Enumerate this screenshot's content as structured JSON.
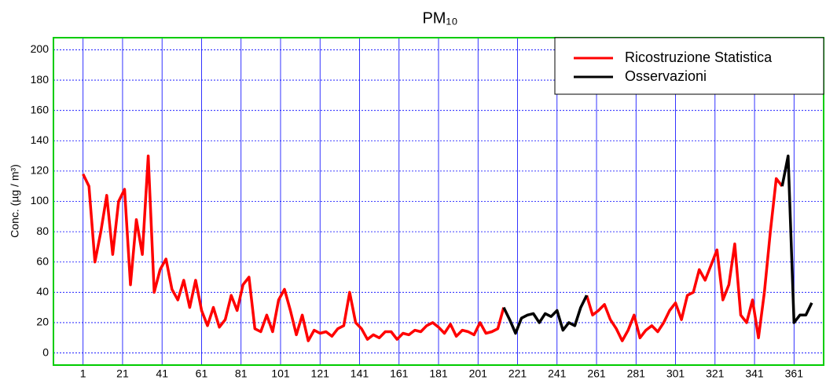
{
  "chart_data": {
    "type": "line",
    "title": "PM₁₀",
    "ylabel": "Conc. (µg / m³)",
    "x": [
      1,
      4,
      7,
      10,
      13,
      16,
      19,
      22,
      25,
      28,
      31,
      34,
      37,
      40,
      43,
      46,
      49,
      52,
      55,
      58,
      61,
      64,
      67,
      70,
      73,
      76,
      79,
      82,
      85,
      88,
      91,
      94,
      97,
      100,
      103,
      106,
      109,
      112,
      115,
      118,
      121,
      124,
      127,
      130,
      133,
      136,
      139,
      142,
      145,
      148,
      151,
      154,
      157,
      160,
      163,
      166,
      169,
      172,
      175,
      178,
      181,
      184,
      187,
      190,
      193,
      196,
      199,
      202,
      205,
      208,
      211,
      214,
      217,
      220,
      223,
      226,
      229,
      232,
      235,
      238,
      241,
      244,
      247,
      250,
      253,
      256,
      259,
      262,
      265,
      268,
      271,
      274,
      277,
      280,
      283,
      286,
      289,
      292,
      295,
      298,
      301,
      304,
      307,
      310,
      313,
      316,
      319,
      322,
      325,
      328,
      331,
      334,
      337,
      340,
      343,
      346,
      349,
      352,
      355,
      358,
      361,
      364,
      367,
      370
    ],
    "series": [
      {
        "name": "Ricostruzione Statistica",
        "color": "#ff0000",
        "values": [
          118,
          110,
          60,
          80,
          104,
          65,
          100,
          108,
          45,
          88,
          65,
          130,
          40,
          55,
          62,
          42,
          35,
          48,
          30,
          48,
          28,
          18,
          30,
          17,
          22,
          38,
          28,
          45,
          50,
          16,
          14,
          25,
          14,
          35,
          42,
          28,
          12,
          25,
          8,
          15,
          13,
          14,
          11,
          16,
          18,
          40,
          20,
          16,
          9,
          12,
          10,
          14,
          14,
          9,
          13,
          12,
          15,
          14,
          18,
          20,
          17,
          13,
          19,
          11,
          15,
          14,
          12,
          20,
          13,
          14,
          16,
          30,
          null,
          null,
          null,
          null,
          null,
          null,
          null,
          null,
          null,
          null,
          null,
          null,
          null,
          38,
          25,
          28,
          32,
          22,
          16,
          8,
          15,
          25,
          10,
          15,
          18,
          14,
          20,
          28,
          33,
          22,
          38,
          40,
          55,
          48,
          58,
          68,
          35,
          45,
          72,
          25,
          20,
          35,
          10,
          40,
          80,
          115,
          110,
          null,
          null,
          null,
          null,
          null
        ]
      },
      {
        "name": "Osservazioni",
        "color": "#000000",
        "values": [
          null,
          null,
          null,
          null,
          null,
          null,
          null,
          null,
          null,
          null,
          null,
          null,
          null,
          null,
          null,
          null,
          null,
          null,
          null,
          null,
          null,
          null,
          null,
          null,
          null,
          null,
          null,
          null,
          null,
          null,
          null,
          null,
          null,
          null,
          null,
          null,
          null,
          null,
          null,
          null,
          null,
          null,
          null,
          null,
          null,
          null,
          null,
          null,
          null,
          null,
          null,
          null,
          null,
          null,
          null,
          null,
          null,
          null,
          null,
          null,
          null,
          null,
          null,
          null,
          null,
          null,
          null,
          null,
          null,
          null,
          null,
          30,
          22,
          13,
          23,
          25,
          26,
          20,
          26,
          24,
          28,
          15,
          20,
          18,
          30,
          38,
          null,
          null,
          null,
          null,
          null,
          null,
          null,
          null,
          null,
          null,
          null,
          null,
          null,
          null,
          null,
          null,
          null,
          null,
          null,
          null,
          null,
          null,
          null,
          null,
          null,
          null,
          null,
          null,
          null,
          null,
          null,
          null,
          110,
          130,
          20,
          25,
          25,
          33
        ]
      }
    ],
    "xlim": [
      -14,
      376
    ],
    "ylim": [
      -8,
      208
    ],
    "xticks": [
      1,
      21,
      41,
      61,
      81,
      101,
      121,
      141,
      161,
      181,
      201,
      221,
      241,
      261,
      281,
      301,
      321,
      341,
      361
    ],
    "yticks": [
      0,
      20,
      40,
      60,
      80,
      100,
      120,
      140,
      160,
      180,
      200
    ],
    "grid": true,
    "legend": "upper right"
  }
}
